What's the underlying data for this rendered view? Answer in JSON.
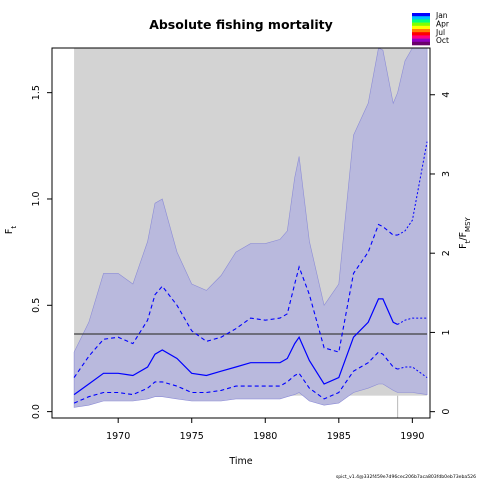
{
  "chart_data": {
    "type": "line",
    "title": "Absolute fishing mortality",
    "xlabel": "Time",
    "ylabel": "F",
    "ylabel_sub": "t",
    "y2label": "F",
    "y2label_sub": "t",
    "y2label_tail": "/F",
    "y2label_tail_sub": "MSY",
    "xlim": [
      1965.5,
      1991.2
    ],
    "ylim": [
      -0.03,
      1.71
    ],
    "y2lim": [
      -0.08,
      4.59
    ],
    "x_ticks": [
      1970,
      1975,
      1980,
      1985,
      1990
    ],
    "y_ticks": [
      0.0,
      0.5,
      1.0,
      1.5
    ],
    "y_tick_labels": [
      "0.0",
      "0.5",
      "1.0",
      "1.5"
    ],
    "y2_ticks": [
      0,
      1,
      2,
      3,
      4
    ],
    "data_start": 1967,
    "data_end": 1991,
    "last_observation": 1989,
    "fmsy": 0.365,
    "fmsy_lower": 0.075,
    "background_band_upper": 1.71,
    "legend": [
      "Jan",
      "Apr",
      "Jul",
      "Oct"
    ],
    "legend_colors": [
      "#0000ff",
      "#00bfff",
      "#00ff7f",
      "#7fff00",
      "#ffff00",
      "#ff7f00",
      "#ff0000",
      "#ff0080",
      "#9000c0",
      "#6a006a"
    ],
    "colors": {
      "median": "#0000ff",
      "ci": "#0000ff",
      "outer_fill": "#b9b9dd",
      "outer_edge": "#8c8cd6",
      "background": "#d3d3d3",
      "fmsy_line": "#404040"
    },
    "x": [
      1967,
      1968,
      1969,
      1970,
      1971,
      1972,
      1972.5,
      1973,
      1974,
      1975,
      1976,
      1977,
      1978,
      1979,
      1980,
      1981,
      1981.5,
      1982,
      1982.3,
      1983,
      1984,
      1985,
      1986,
      1987,
      1987.7,
      1988,
      1988.7,
      1989,
      1989.5,
      1990,
      1991
    ],
    "series": [
      {
        "role": "outer_upper",
        "values": [
          0.28,
          0.42,
          0.65,
          0.65,
          0.6,
          0.8,
          0.98,
          1.0,
          0.75,
          0.6,
          0.57,
          0.64,
          0.75,
          0.79,
          0.79,
          0.81,
          0.85,
          1.1,
          1.2,
          0.8,
          0.5,
          0.6,
          1.3,
          1.45,
          1.75,
          1.7,
          1.45,
          1.5,
          1.65,
          1.71,
          1.75
        ]
      },
      {
        "role": "ci_upper",
        "values": [
          0.16,
          0.26,
          0.34,
          0.35,
          0.32,
          0.43,
          0.55,
          0.59,
          0.5,
          0.38,
          0.33,
          0.35,
          0.39,
          0.44,
          0.43,
          0.44,
          0.46,
          0.6,
          0.68,
          0.55,
          0.3,
          0.28,
          0.65,
          0.75,
          0.88,
          0.87,
          0.83,
          0.83,
          0.85,
          0.9,
          1.27
        ]
      },
      {
        "role": "median",
        "values": [
          0.08,
          0.13,
          0.18,
          0.18,
          0.17,
          0.21,
          0.27,
          0.29,
          0.25,
          0.18,
          0.17,
          0.19,
          0.21,
          0.23,
          0.23,
          0.23,
          0.25,
          0.32,
          0.35,
          0.24,
          0.13,
          0.16,
          0.35,
          0.42,
          0.53,
          0.53,
          0.42,
          0.41,
          0.43,
          0.44,
          0.44
        ]
      },
      {
        "role": "ci_lower",
        "values": [
          0.04,
          0.07,
          0.09,
          0.09,
          0.08,
          0.11,
          0.14,
          0.14,
          0.12,
          0.09,
          0.09,
          0.1,
          0.12,
          0.12,
          0.12,
          0.12,
          0.14,
          0.17,
          0.18,
          0.11,
          0.06,
          0.09,
          0.19,
          0.23,
          0.28,
          0.27,
          0.21,
          0.2,
          0.21,
          0.21,
          0.16
        ]
      },
      {
        "role": "outer_lower",
        "values": [
          0.02,
          0.03,
          0.05,
          0.05,
          0.05,
          0.06,
          0.07,
          0.07,
          0.06,
          0.05,
          0.05,
          0.05,
          0.06,
          0.06,
          0.06,
          0.06,
          0.07,
          0.08,
          0.09,
          0.05,
          0.03,
          0.04,
          0.09,
          0.11,
          0.13,
          0.13,
          0.1,
          0.09,
          0.09,
          0.09,
          0.08
        ]
      }
    ]
  },
  "footer": "spict_v1.4@332f459e7d96cec206b7aca803fdb0eb73eba526"
}
